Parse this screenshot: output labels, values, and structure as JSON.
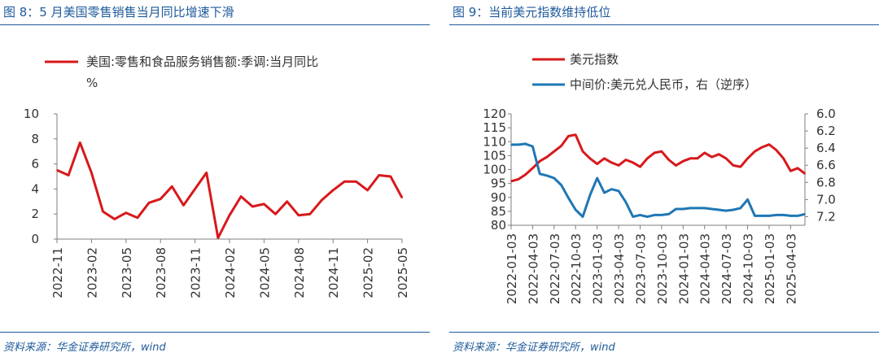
{
  "left_panel": {
    "figure_title": "图 8：5 月美国零售销售当月同比增速下滑",
    "source": "资料来源：华金证券研究所，wind"
  },
  "right_panel": {
    "figure_title": "图 9：当前美元指数维持低位",
    "source": "资料来源：华金证券研究所，wind"
  },
  "chart_data": [
    {
      "type": "line",
      "title": "",
      "ylim": [
        0,
        10
      ],
      "yticks": [
        "0",
        "2",
        "4",
        "6",
        "8",
        "10"
      ],
      "xtick_labels": [
        "2022-11",
        "2023-02",
        "2023-05",
        "2023-08",
        "2023-11",
        "2024-02",
        "2024-05",
        "2024-08",
        "2024-11",
        "2025-02",
        "2025-05"
      ],
      "legend_placement": "top",
      "series": [
        {
          "name": "美国:零售和食品服务销售额:季调:当月同比",
          "unit_label": "%",
          "color": "#d7191c",
          "x": [
            "2022-11",
            "2022-12",
            "2023-01",
            "2023-02",
            "2023-03",
            "2023-04",
            "2023-05",
            "2023-06",
            "2023-07",
            "2023-08",
            "2023-09",
            "2023-10",
            "2023-11",
            "2023-12",
            "2024-01",
            "2024-02",
            "2024-03",
            "2024-04",
            "2024-05",
            "2024-06",
            "2024-07",
            "2024-08",
            "2024-09",
            "2024-10",
            "2024-11",
            "2024-12",
            "2025-01",
            "2025-02",
            "2025-03",
            "2025-04",
            "2025-05"
          ],
          "values": [
            5.5,
            5.1,
            7.7,
            5.3,
            2.2,
            1.6,
            2.1,
            1.7,
            2.9,
            3.2,
            4.2,
            2.7,
            4.0,
            5.3,
            0.1,
            1.9,
            3.4,
            2.6,
            2.8,
            2.0,
            3.0,
            1.9,
            2.0,
            3.1,
            3.9,
            4.6,
            4.6,
            3.9,
            5.1,
            5.0,
            3.3
          ]
        }
      ]
    },
    {
      "type": "line",
      "title": "",
      "ylim": [
        80,
        120
      ],
      "yticks": [
        "80",
        "85",
        "90",
        "95",
        "100",
        "105",
        "110",
        "115",
        "120"
      ],
      "y2lim": [
        7.3,
        6.0
      ],
      "y2ticks": [
        "6.0",
        "6.2",
        "6.4",
        "6.6",
        "6.8",
        "7.0",
        "7.2"
      ],
      "xtick_labels": [
        "2022-01-03",
        "2022-04-03",
        "2022-07-03",
        "2022-10-03",
        "2023-01-03",
        "2023-04-03",
        "2023-07-03",
        "2023-10-03",
        "2024-01-03",
        "2024-04-03",
        "2024-07-03",
        "2024-10-03",
        "2025-01-03",
        "2025-04-03"
      ],
      "legend_placement": "top",
      "series": [
        {
          "name": "美元指数",
          "color": "#d7191c",
          "axis": "left",
          "x": [
            "2022-01",
            "2022-02",
            "2022-03",
            "2022-04",
            "2022-05",
            "2022-06",
            "2022-07",
            "2022-08",
            "2022-09",
            "2022-10",
            "2022-11",
            "2022-12",
            "2023-01",
            "2023-02",
            "2023-03",
            "2023-04",
            "2023-05",
            "2023-06",
            "2023-07",
            "2023-08",
            "2023-09",
            "2023-10",
            "2023-11",
            "2023-12",
            "2024-01",
            "2024-02",
            "2024-03",
            "2024-04",
            "2024-05",
            "2024-06",
            "2024-07",
            "2024-08",
            "2024-09",
            "2024-10",
            "2024-11",
            "2024-12",
            "2025-01",
            "2025-02",
            "2025-03",
            "2025-04",
            "2025-05",
            "2025-06"
          ],
          "values": [
            95.8,
            96.5,
            98.2,
            100.5,
            103.0,
            104.5,
            106.5,
            108.5,
            112.0,
            112.5,
            106.5,
            104.0,
            102.0,
            104.0,
            102.5,
            101.5,
            103.5,
            102.5,
            101.0,
            104.0,
            106.0,
            106.5,
            103.5,
            101.5,
            103.0,
            104.0,
            104.0,
            106.0,
            104.5,
            105.5,
            104.0,
            101.5,
            101.0,
            104.0,
            106.5,
            108.0,
            109.0,
            107.0,
            104.0,
            99.5,
            100.5,
            98.5
          ]
        },
        {
          "name": "中间价:美元兑人民币，右（逆序）",
          "color": "#1f77b4",
          "axis": "right",
          "x": [
            "2022-01",
            "2022-02",
            "2022-03",
            "2022-04",
            "2022-05",
            "2022-06",
            "2022-07",
            "2022-08",
            "2022-09",
            "2022-10",
            "2022-11",
            "2022-12",
            "2023-01",
            "2023-02",
            "2023-03",
            "2023-04",
            "2023-05",
            "2023-06",
            "2023-07",
            "2023-08",
            "2023-09",
            "2023-10",
            "2023-11",
            "2023-12",
            "2024-01",
            "2024-02",
            "2024-03",
            "2024-04",
            "2024-05",
            "2024-06",
            "2024-07",
            "2024-08",
            "2024-09",
            "2024-10",
            "2024-11",
            "2024-12",
            "2025-01",
            "2025-02",
            "2025-03",
            "2025-04",
            "2025-05",
            "2025-06"
          ],
          "values": [
            6.36,
            6.36,
            6.35,
            6.38,
            6.7,
            6.72,
            6.75,
            6.83,
            6.98,
            7.12,
            7.2,
            6.95,
            6.75,
            6.92,
            6.88,
            6.9,
            7.03,
            7.2,
            7.18,
            7.2,
            7.18,
            7.18,
            7.17,
            7.11,
            7.11,
            7.1,
            7.1,
            7.1,
            7.11,
            7.12,
            7.13,
            7.12,
            7.1,
            7.0,
            7.19,
            7.19,
            7.19,
            7.18,
            7.18,
            7.19,
            7.19,
            7.17
          ]
        }
      ]
    }
  ]
}
